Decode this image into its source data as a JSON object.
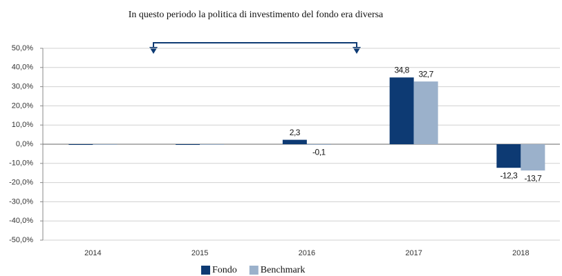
{
  "chart_data": {
    "type": "bar",
    "annotation": "In questo periodo la politica di investimento del fondo era diversa",
    "categories": [
      "2014",
      "2015",
      "2016",
      "2017",
      "2018"
    ],
    "series": [
      {
        "name": "Fondo",
        "color": "#0d3a73",
        "values": [
          0,
          0,
          2.3,
          34.8,
          -12.3
        ],
        "value_labels": [
          null,
          null,
          "2,3",
          "34,8",
          "-12,3"
        ]
      },
      {
        "name": "Benchmark",
        "color": "#9bb1cb",
        "values": [
          0,
          0,
          -0.1,
          32.7,
          -13.7
        ],
        "value_labels": [
          null,
          null,
          "-0,1",
          "32,7",
          "-13,7"
        ]
      }
    ],
    "ylim": [
      -50,
      50
    ],
    "yticks": [
      {
        "value": -50,
        "label": "-50,0%"
      },
      {
        "value": -40,
        "label": "-40,0%"
      },
      {
        "value": -30,
        "label": "-30,0%"
      },
      {
        "value": -20,
        "label": "-20,0%"
      },
      {
        "value": -10,
        "label": "-10,0%"
      },
      {
        "value": 0,
        "label": "0,0%"
      },
      {
        "value": 10,
        "label": "10,0%"
      },
      {
        "value": 20,
        "label": "20,0%"
      },
      {
        "value": 30,
        "label": "30,0%"
      },
      {
        "value": 40,
        "label": "40,0%"
      },
      {
        "value": 50,
        "label": "50,0%"
      }
    ],
    "grid": true,
    "legend": "bottom"
  }
}
